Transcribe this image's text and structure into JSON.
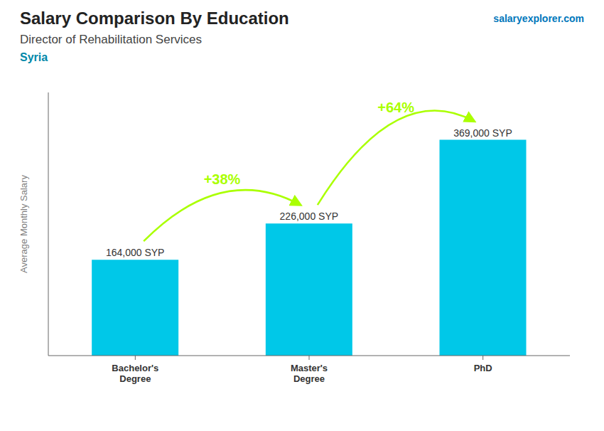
{
  "chart_data": {
    "type": "bar",
    "title": "Salary Comparison By Education",
    "subtitle": "Director of Rehabilitation Services",
    "country": "Syria",
    "watermark": "salaryexplorer.com",
    "y_label": "Average Monthly Salary",
    "categories": [
      "Bachelor's\nDegree",
      "Master's\nDegree",
      "PhD"
    ],
    "values": [
      164000,
      226000,
      369000
    ],
    "value_labels": [
      "164,000 SYP",
      "226,000 SYP",
      "369,000 SYP"
    ],
    "data_labels": true,
    "color": "#00c8e8",
    "ylim": [
      0,
      450000
    ],
    "tick_labels": false,
    "grid": false,
    "annotations": [
      {
        "text": "+38%",
        "color": "#aaff00"
      },
      {
        "text": "+64%",
        "color": "#aaff00"
      }
    ]
  }
}
